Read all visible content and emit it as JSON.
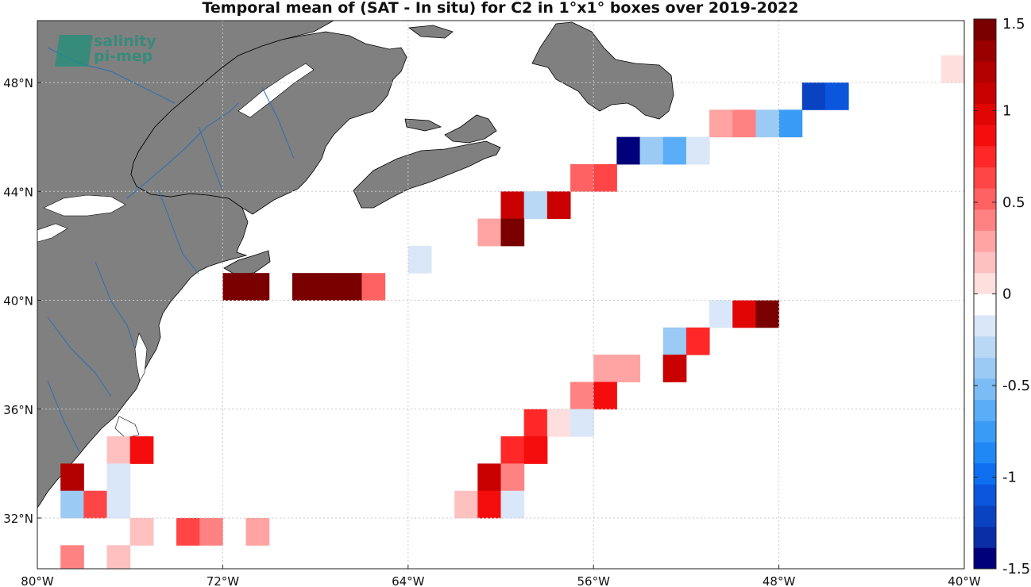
{
  "title": "Temporal mean of (SAT - In situ) for C2 in 1°x1° boxes over 2019-2022",
  "logo": {
    "line1": "salinity",
    "line2": "pi-mep"
  },
  "map": {
    "lon_range": [
      -80,
      -40
    ],
    "lat_range": [
      30,
      50
    ],
    "lon_ticks": [
      {
        "value": -80,
        "label": "80°W"
      },
      {
        "value": -72,
        "label": "72°W"
      },
      {
        "value": -64,
        "label": "64°W"
      },
      {
        "value": -56,
        "label": "56°W"
      },
      {
        "value": -48,
        "label": "48°W"
      },
      {
        "value": -40,
        "label": "40°W"
      }
    ],
    "lat_ticks": [
      {
        "value": 32,
        "label": "32°N"
      },
      {
        "value": 36,
        "label": "36°N"
      },
      {
        "value": 40,
        "label": "40°N"
      },
      {
        "value": 44,
        "label": "44°N"
      },
      {
        "value": 48,
        "label": "48°N"
      }
    ],
    "grid": true,
    "land_color": "#808080",
    "river_color": "#2c6fb5"
  },
  "colorbar": {
    "range": [
      -1.5,
      1.5
    ],
    "ticks": [
      {
        "value": 1.5,
        "label": "1.5"
      },
      {
        "value": 1,
        "label": "1"
      },
      {
        "value": 0.5,
        "label": "0.5"
      },
      {
        "value": 0,
        "label": "0"
      },
      {
        "value": -0.5,
        "label": "-0.5"
      },
      {
        "value": -1,
        "label": "-1"
      },
      {
        "value": -1.5,
        "label": "-1.5"
      }
    ],
    "colors": [
      "#00007a",
      "#0a2ea8",
      "#0a43c2",
      "#0a56dc",
      "#0d6ff0",
      "#2088f5",
      "#3a9bf7",
      "#5aadf7",
      "#7bbcf6",
      "#9bcaf5",
      "#b9d8f6",
      "#d9e7f8",
      "#ffffff",
      "#ffdede",
      "#ffc0c0",
      "#ffa3a3",
      "#ff8282",
      "#ff6262",
      "#ff4545",
      "#ff2727",
      "#f50d0d",
      "#e10505",
      "#c90000",
      "#b30000",
      "#9a0000",
      "#7a0000"
    ]
  },
  "chart_data": {
    "type": "heatmap",
    "title": "Temporal mean of (SAT - In situ) for C2 in 1°x1° boxes over 2019-2022",
    "cell_size_deg": 1,
    "cells": [
      {
        "lon": -40.5,
        "lat": 48.5,
        "value": 0.1
      },
      {
        "lon": -46.5,
        "lat": 47.5,
        "value": -1.2
      },
      {
        "lon": -45.5,
        "lat": 47.5,
        "value": -1.1
      },
      {
        "lon": -50.5,
        "lat": 46.5,
        "value": 0.3
      },
      {
        "lon": -49.5,
        "lat": 46.5,
        "value": 0.4
      },
      {
        "lon": -48.5,
        "lat": 46.5,
        "value": -0.35
      },
      {
        "lon": -47.5,
        "lat": 46.5,
        "value": -0.7
      },
      {
        "lon": -54.5,
        "lat": 45.5,
        "value": -1.5
      },
      {
        "lon": -53.5,
        "lat": 45.5,
        "value": -0.35
      },
      {
        "lon": -52.5,
        "lat": 45.5,
        "value": -0.65
      },
      {
        "lon": -51.5,
        "lat": 45.5,
        "value": -0.2
      },
      {
        "lon": -56.5,
        "lat": 44.5,
        "value": 0.5
      },
      {
        "lon": -55.5,
        "lat": 44.5,
        "value": 0.65
      },
      {
        "lon": -59.5,
        "lat": 43.5,
        "value": 1.1
      },
      {
        "lon": -58.5,
        "lat": 43.5,
        "value": -0.3
      },
      {
        "lon": -57.5,
        "lat": 43.5,
        "value": 1.1
      },
      {
        "lon": -60.5,
        "lat": 42.5,
        "value": 0.3
      },
      {
        "lon": -59.5,
        "lat": 42.5,
        "value": 1.4
      },
      {
        "lon": -63.5,
        "lat": 41.5,
        "value": -0.15
      },
      {
        "lon": -71.5,
        "lat": 40.5,
        "value": 1.4
      },
      {
        "lon": -70.5,
        "lat": 40.5,
        "value": 1.4
      },
      {
        "lon": -68.5,
        "lat": 40.5,
        "value": 1.4
      },
      {
        "lon": -67.5,
        "lat": 40.5,
        "value": 1.4
      },
      {
        "lon": -66.5,
        "lat": 40.5,
        "value": 1.4
      },
      {
        "lon": -65.5,
        "lat": 40.5,
        "value": 0.55
      },
      {
        "lon": -50.5,
        "lat": 39.5,
        "value": -0.15
      },
      {
        "lon": -49.5,
        "lat": 39.5,
        "value": 1.0
      },
      {
        "lon": -48.5,
        "lat": 39.5,
        "value": 1.4
      },
      {
        "lon": -52.5,
        "lat": 38.5,
        "value": -0.35
      },
      {
        "lon": -51.5,
        "lat": 38.5,
        "value": 0.7
      },
      {
        "lon": -55.5,
        "lat": 37.5,
        "value": 0.3
      },
      {
        "lon": -54.5,
        "lat": 37.5,
        "value": 0.3
      },
      {
        "lon": -52.5,
        "lat": 37.5,
        "value": 1.15
      },
      {
        "lon": -56.5,
        "lat": 36.5,
        "value": 0.45
      },
      {
        "lon": -55.5,
        "lat": 36.5,
        "value": 0.85
      },
      {
        "lon": -58.5,
        "lat": 35.5,
        "value": 0.8
      },
      {
        "lon": -57.5,
        "lat": 35.5,
        "value": 0.1
      },
      {
        "lon": -56.5,
        "lat": 35.5,
        "value": -0.12
      },
      {
        "lon": -59.5,
        "lat": 34.5,
        "value": 0.8
      },
      {
        "lon": -58.5,
        "lat": 34.5,
        "value": 0.85
      },
      {
        "lon": -60.5,
        "lat": 33.5,
        "value": 1.1
      },
      {
        "lon": -59.5,
        "lat": 33.5,
        "value": 0.35
      },
      {
        "lon": -61.5,
        "lat": 32.5,
        "value": 0.15
      },
      {
        "lon": -60.5,
        "lat": 32.5,
        "value": 0.9
      },
      {
        "lon": -59.5,
        "lat": 32.5,
        "value": -0.2
      },
      {
        "lon": -76.5,
        "lat": 34.5,
        "value": 0.2
      },
      {
        "lon": -75.5,
        "lat": 34.5,
        "value": 0.85
      },
      {
        "lon": -78.5,
        "lat": 33.5,
        "value": 1.25
      },
      {
        "lon": -76.5,
        "lat": 33.5,
        "value": -0.15
      },
      {
        "lon": -78.5,
        "lat": 32.5,
        "value": -0.35
      },
      {
        "lon": -77.5,
        "lat": 32.5,
        "value": 0.6
      },
      {
        "lon": -76.5,
        "lat": 32.5,
        "value": -0.15
      },
      {
        "lon": -75.5,
        "lat": 31.5,
        "value": 0.15
      },
      {
        "lon": -73.5,
        "lat": 31.5,
        "value": 0.65
      },
      {
        "lon": -72.5,
        "lat": 31.5,
        "value": 0.35
      },
      {
        "lon": -70.5,
        "lat": 31.5,
        "value": 0.3
      },
      {
        "lon": -78.5,
        "lat": 30.5,
        "value": 0.4
      },
      {
        "lon": -76.5,
        "lat": 30.5,
        "value": 0.15
      }
    ]
  }
}
